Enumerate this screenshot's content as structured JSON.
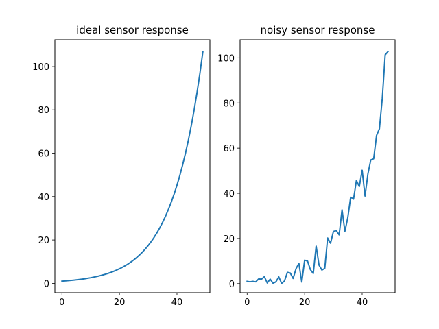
{
  "chart_data": [
    {
      "type": "line",
      "title": "ideal sensor response",
      "xlabel": "",
      "ylabel": "",
      "xlim": [
        -2.45,
        51.45
      ],
      "ylim": [
        -4.3,
        112.3
      ],
      "xticks": [
        0,
        20,
        40
      ],
      "yticks": [
        0,
        20,
        40,
        60,
        80,
        100
      ],
      "grid": false,
      "color": "#1f77b4",
      "series": [
        {
          "x": [
            0,
            1,
            2,
            3,
            4,
            5,
            6,
            7,
            8,
            9,
            10,
            11,
            12,
            13,
            14,
            15,
            16,
            17,
            18,
            19,
            20,
            21,
            22,
            23,
            24,
            25,
            26,
            27,
            28,
            29,
            30,
            31,
            32,
            33,
            34,
            35,
            36,
            37,
            38,
            39,
            40,
            41,
            42,
            43,
            44,
            45,
            46,
            47,
            48,
            49
          ],
          "values": [
            1.0,
            1.1,
            1.21,
            1.33,
            1.46,
            1.61,
            1.77,
            1.95,
            2.14,
            2.36,
            2.59,
            2.85,
            3.14,
            3.45,
            3.8,
            4.18,
            4.59,
            5.05,
            5.56,
            6.12,
            6.73,
            7.4,
            8.14,
            8.95,
            9.85,
            10.83,
            11.92,
            13.11,
            14.42,
            15.86,
            17.45,
            19.19,
            21.11,
            23.23,
            25.55,
            28.1,
            30.91,
            34.0,
            37.4,
            41.14,
            45.26,
            49.79,
            54.76,
            60.24,
            66.26,
            72.89,
            80.18,
            88.2,
            97.02,
            106.72
          ]
        }
      ]
    },
    {
      "type": "line",
      "title": "noisy sensor response",
      "xlabel": "",
      "ylabel": "",
      "xlim": [
        -2.45,
        51.45
      ],
      "ylim": [
        -4.0,
        108.0
      ],
      "xticks": [
        0,
        20,
        40
      ],
      "yticks": [
        0,
        20,
        40,
        60,
        80,
        100
      ],
      "grid": false,
      "color": "#1f77b4",
      "series": [
        {
          "x": [
            0,
            1,
            2,
            3,
            4,
            5,
            6,
            7,
            8,
            9,
            10,
            11,
            12,
            13,
            14,
            15,
            16,
            17,
            18,
            19,
            20,
            21,
            22,
            23,
            24,
            25,
            26,
            27,
            28,
            29,
            30,
            31,
            32,
            33,
            34,
            35,
            36,
            37,
            38,
            39,
            40,
            41,
            42,
            43,
            44,
            45,
            46,
            47,
            48,
            49
          ],
          "values": [
            1.0,
            0.8,
            1.0,
            0.8,
            2.1,
            2.0,
            3.1,
            0.3,
            2.0,
            0.2,
            0.8,
            3.0,
            0.1,
            1.2,
            5.0,
            4.7,
            2.3,
            6.6,
            9.0,
            0.7,
            10.4,
            10.0,
            6.2,
            4.5,
            16.6,
            8.2,
            6.0,
            6.8,
            20.2,
            17.9,
            23.1,
            23.5,
            21.6,
            32.7,
            23.2,
            29.2,
            38.3,
            37.4,
            45.7,
            43.0,
            50.2,
            38.8,
            48.6,
            54.8,
            55.3,
            65.6,
            68.6,
            82.1,
            101.3,
            102.8
          ]
        }
      ]
    }
  ]
}
